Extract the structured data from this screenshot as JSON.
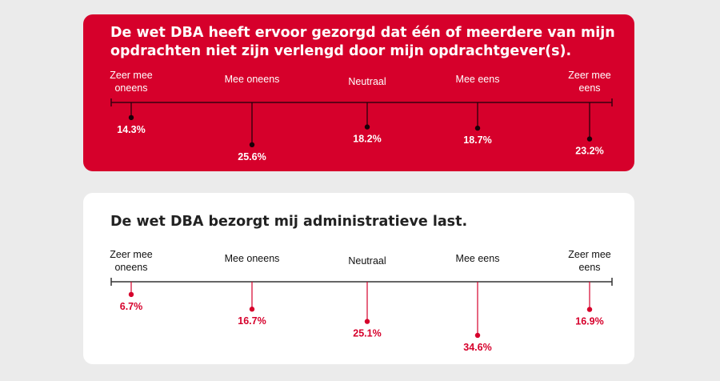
{
  "chart_data": [
    {
      "type": "lollipop",
      "title": "De wet DBA heeft ervoor gezorgd dat één of meerdere van mijn opdrachten niet zijn verlengd door mijn opdrachtgever(s).",
      "categories": [
        "Zeer mee oneens",
        "Mee oneens",
        "Neutraal",
        "Mee eens",
        "Zeer mee eens"
      ],
      "values": [
        14.3,
        25.6,
        18.2,
        18.7,
        23.2
      ],
      "labels": [
        "14.3%",
        "25.6%",
        "18.2%",
        "18.7%",
        "23.2%"
      ],
      "unit": "%",
      "colors": {
        "background": "#d6002b",
        "text": "#ffffff",
        "marks": "#1a0008"
      }
    },
    {
      "type": "lollipop",
      "title": "De wet DBA bezorgt mij administratieve last.",
      "categories": [
        "Zeer mee oneens",
        "Mee oneens",
        "Neutraal",
        "Mee eens",
        "Zeer mee eens"
      ],
      "values": [
        6.7,
        16.7,
        25.1,
        34.6,
        16.9
      ],
      "labels": [
        "6.7%",
        "16.7%",
        "25.1%",
        "34.6%",
        "16.9%"
      ],
      "unit": "%",
      "colors": {
        "background": "#ffffff",
        "text": "#d6002b",
        "marks": "#d6002b"
      }
    }
  ]
}
